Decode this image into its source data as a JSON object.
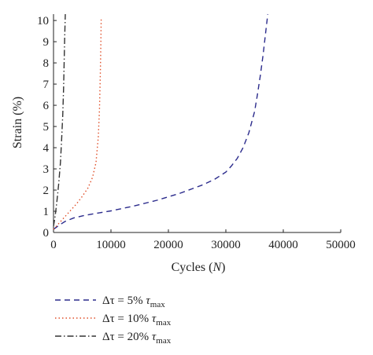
{
  "chart_data": {
    "type": "line",
    "xlabel": "Cycles (N)",
    "xlabel_parts": {
      "main": "Cycles (",
      "italic": "N",
      "close": ")"
    },
    "ylabel": "Strain (%)",
    "xlim": [
      0,
      50000
    ],
    "ylim": [
      0,
      10.3
    ],
    "x_ticks": [
      0,
      10000,
      20000,
      30000,
      40000,
      50000
    ],
    "x_tick_labels": [
      "0",
      "10000",
      "20000",
      "30000",
      "40000",
      "50000"
    ],
    "y_ticks": [
      0,
      1,
      2,
      3,
      4,
      5,
      6,
      7,
      8,
      9,
      10
    ],
    "y_tick_labels": [
      "0",
      "1",
      "2",
      "3",
      "4",
      "5",
      "6",
      "7",
      "8",
      "9",
      "10"
    ],
    "grid": false,
    "legend_position": "bottom-left",
    "series": [
      {
        "name": "Δτ = 5% τmax",
        "legend": {
          "prefix": "Δτ = 5% ",
          "tau": "τ",
          "sub": "max"
        },
        "color": "#2b2b8c",
        "dash": "7,5",
        "x": [
          0,
          1000,
          2000,
          3500,
          5000,
          7000,
          10000,
          14000,
          18000,
          22000,
          26000,
          28000,
          30000,
          31000,
          32000,
          33000,
          34000,
          35000,
          35500,
          36000,
          36500,
          37000,
          37300
        ],
        "y": [
          0.15,
          0.35,
          0.52,
          0.68,
          0.78,
          0.88,
          1.02,
          1.25,
          1.52,
          1.85,
          2.25,
          2.5,
          2.85,
          3.15,
          3.5,
          4.0,
          4.7,
          5.7,
          6.5,
          7.4,
          8.4,
          9.6,
          10.3
        ]
      },
      {
        "name": "Δτ = 10% τmax",
        "legend": {
          "prefix": "Δτ = 10% ",
          "tau": "τ",
          "sub": "max"
        },
        "color": "#e0502a",
        "dash": "1.5,3",
        "x": [
          0,
          1000,
          2000,
          3000,
          4000,
          5000,
          6000,
          6800,
          7400,
          7800,
          8000,
          8150,
          8250,
          8300
        ],
        "y": [
          0.15,
          0.45,
          0.75,
          1.05,
          1.35,
          1.7,
          2.1,
          2.6,
          3.3,
          4.5,
          5.8,
          7.5,
          9.0,
          10.1
        ]
      },
      {
        "name": "Δτ = 20% τmax",
        "legend": {
          "prefix": "Δτ = 20% ",
          "tau": "τ",
          "sub": "max"
        },
        "color": "#333333",
        "dash": "8,3,1.5,3",
        "x": [
          0,
          300,
          600,
          900,
          1200,
          1400,
          1600,
          1750,
          1850,
          1950,
          2050
        ],
        "y": [
          0.3,
          0.8,
          1.5,
          2.3,
          3.3,
          4.3,
          5.5,
          6.8,
          8.0,
          9.2,
          10.3
        ]
      }
    ]
  }
}
